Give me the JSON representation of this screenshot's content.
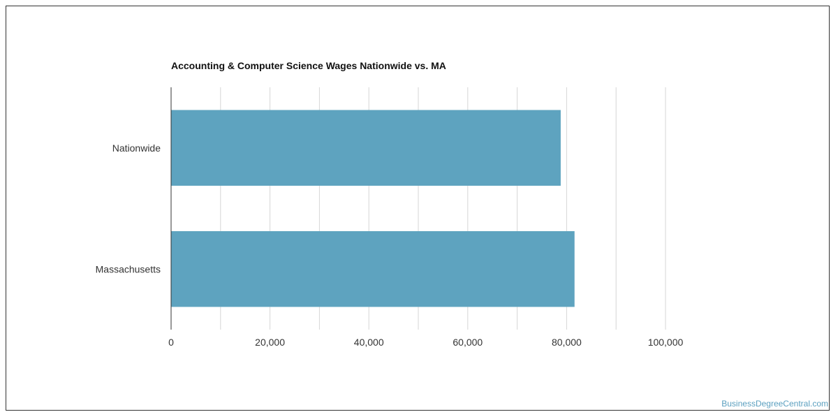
{
  "chart_data": {
    "type": "bar",
    "orientation": "horizontal",
    "title": "Accounting & Computer Science Wages Nationwide vs. MA",
    "categories": [
      "Nationwide",
      "Massachusetts"
    ],
    "values": [
      78800,
      81600
    ],
    "xlim": [
      0,
      100000
    ],
    "grid_step": 10000,
    "ticks": [
      0,
      20000,
      40000,
      60000,
      80000,
      100000
    ],
    "tick_labels": [
      "0",
      "20,000",
      "40,000",
      "60,000",
      "80,000",
      "100,000"
    ],
    "grid": true,
    "bar_color": "#5ea3bf"
  },
  "footer": {
    "watermark": "BusinessDegreeCentral.com"
  }
}
